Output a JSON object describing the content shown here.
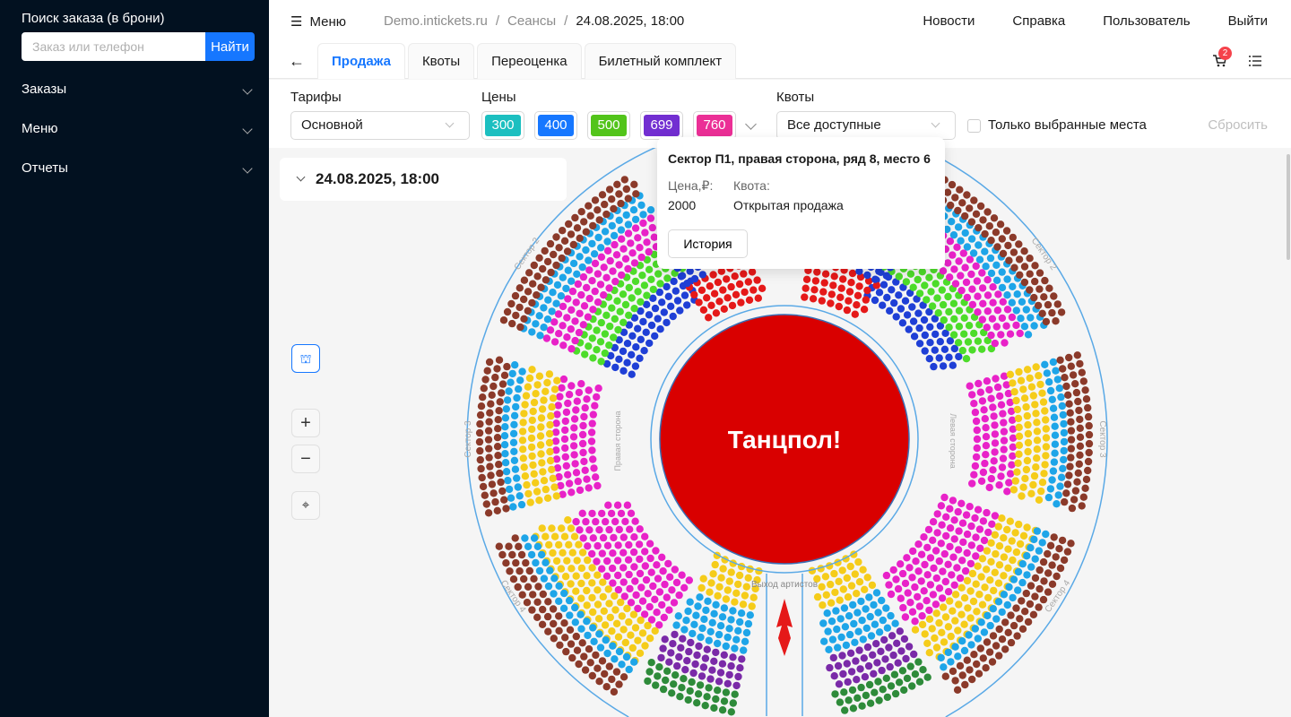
{
  "sidebar": {
    "title": "Поиск заказа (в брони)",
    "search_placeholder": "Заказ или телефон",
    "search_button": "Найти",
    "items": [
      {
        "label": "Заказы"
      },
      {
        "label": "Меню"
      },
      {
        "label": "Отчеты"
      }
    ]
  },
  "header": {
    "menu_label": "Меню",
    "breadcrumbs": [
      "Demo.intickets.ru",
      "Сеансы",
      "24.08.2025, 18:00"
    ],
    "nav": [
      "Новости",
      "Справка",
      "Пользователь",
      "Выйти"
    ],
    "tabs": [
      {
        "label": "Продажа",
        "active": true
      },
      {
        "label": "Квоты"
      },
      {
        "label": "Переоценка"
      },
      {
        "label": "Билетный комплект"
      }
    ],
    "cart_count": "2"
  },
  "filters": {
    "tariffs_label": "Тарифы",
    "tariff_value": "Основной",
    "prices_label": "Цены",
    "prices": [
      {
        "value": "300",
        "color": "#1cbfc0"
      },
      {
        "value": "400",
        "color": "#1677ff"
      },
      {
        "value": "500",
        "color": "#52c41a"
      },
      {
        "value": "699",
        "color": "#722ed1"
      },
      {
        "value": "760",
        "color": "#eb2f96"
      }
    ],
    "quotas_label": "Квоты",
    "quota_value": "Все доступные",
    "only_selected_label": "Только выбранные места",
    "reset_label": "Сбросить"
  },
  "session": {
    "title": "24.08.2025, 18:00"
  },
  "tooltip": {
    "title": "Сектор П1, правая сторона, ряд 8, место 6",
    "price_label": "Цена,₽:",
    "price_value": "2000",
    "quota_label": "Квота:",
    "quota_value": "Открытая продажа",
    "history_button": "История"
  },
  "map": {
    "dance_floor": "Танцпол!",
    "exit_label": "Выход артистов",
    "right_side": "Правая сторона",
    "left_side": "Левая сторона",
    "sector2": "Сектор 2",
    "sector3": "Сектор 3",
    "sector4": "Сектор 4",
    "seat_colors": {
      "blue": "#1f3fd6",
      "green": "#4ddc2a",
      "pink": "#e822c8",
      "cyan": "#1ea5e8",
      "brown": "#8b3a2a",
      "yellow": "#f5cc1a",
      "red": "#e51919",
      "purple": "#7a2aa8",
      "darkgreen": "#2e8b3a",
      "floor": "#d90000"
    }
  }
}
